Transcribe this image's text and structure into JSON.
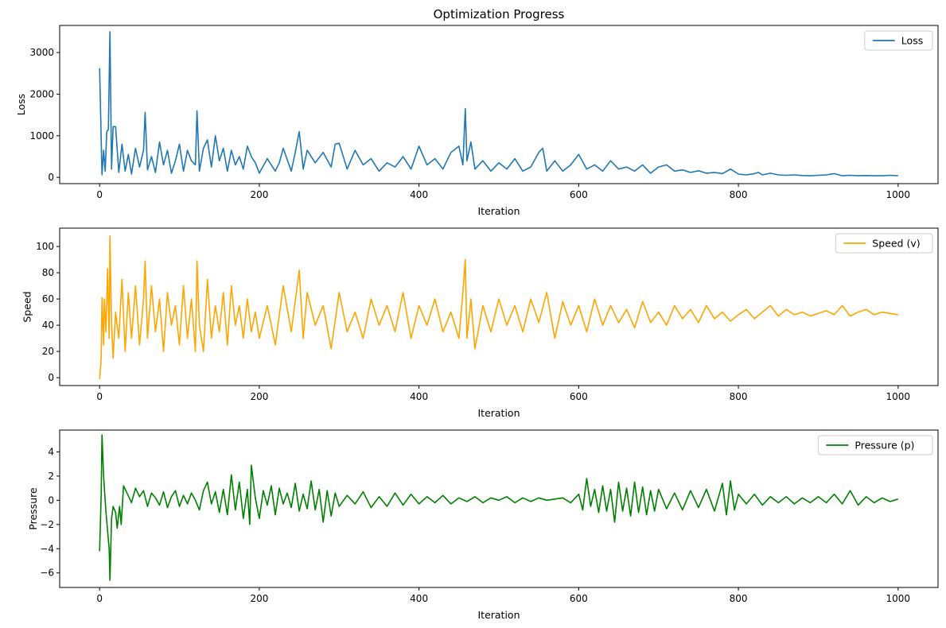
{
  "chart_data": [
    {
      "type": "line",
      "title": "Optimization Progress",
      "xlabel": "Iteration",
      "ylabel": "Loss",
      "xlim": [
        -50,
        1050
      ],
      "ylim": [
        -150,
        3650
      ],
      "xticks": [
        0,
        200,
        400,
        600,
        800,
        1000
      ],
      "yticks": [
        0,
        1000,
        2000,
        3000
      ],
      "grid": false,
      "legend_position": "top-right",
      "series": [
        {
          "name": "Loss",
          "color": "#1f77b4",
          "x": [
            0,
            3,
            5,
            7,
            9,
            11,
            13,
            15,
            17,
            20,
            24,
            28,
            32,
            36,
            40,
            45,
            50,
            55,
            57,
            60,
            65,
            70,
            75,
            80,
            85,
            90,
            95,
            100,
            105,
            110,
            115,
            120,
            122,
            125,
            130,
            135,
            140,
            145,
            150,
            155,
            160,
            165,
            170,
            175,
            180,
            185,
            190,
            195,
            200,
            210,
            220,
            225,
            230,
            240,
            245,
            250,
            255,
            260,
            270,
            280,
            290,
            295,
            300,
            310,
            320,
            330,
            340,
            350,
            360,
            370,
            380,
            390,
            400,
            410,
            420,
            430,
            440,
            450,
            455,
            458,
            460,
            465,
            470,
            480,
            490,
            500,
            510,
            520,
            530,
            540,
            550,
            555,
            560,
            570,
            580,
            590,
            600,
            610,
            620,
            630,
            640,
            650,
            660,
            670,
            680,
            690,
            700,
            710,
            720,
            730,
            740,
            750,
            760,
            770,
            780,
            790,
            800,
            810,
            820,
            825,
            830,
            840,
            850,
            860,
            870,
            880,
            890,
            900,
            910,
            920,
            930,
            940,
            950,
            960,
            970,
            980,
            990,
            1000
          ],
          "values": [
            2620,
            60,
            650,
            150,
            1100,
            1150,
            3500,
            200,
            1220,
            1220,
            120,
            800,
            150,
            550,
            80,
            700,
            250,
            650,
            1560,
            180,
            500,
            120,
            850,
            300,
            650,
            100,
            400,
            800,
            150,
            650,
            400,
            300,
            1600,
            150,
            700,
            900,
            250,
            1000,
            400,
            700,
            150,
            650,
            300,
            500,
            200,
            750,
            500,
            350,
            100,
            450,
            150,
            350,
            700,
            150,
            600,
            1100,
            200,
            650,
            350,
            600,
            250,
            800,
            820,
            200,
            650,
            300,
            450,
            150,
            350,
            250,
            500,
            200,
            750,
            300,
            450,
            200,
            600,
            750,
            300,
            1650,
            400,
            850,
            200,
            400,
            150,
            350,
            200,
            450,
            150,
            250,
            600,
            700,
            150,
            400,
            150,
            300,
            550,
            200,
            300,
            150,
            400,
            200,
            250,
            150,
            300,
            100,
            250,
            300,
            150,
            180,
            120,
            160,
            100,
            120,
            90,
            200,
            80,
            60,
            90,
            120,
            60,
            100,
            60,
            50,
            60,
            45,
            40,
            50,
            60,
            90,
            40,
            50,
            40,
            45,
            40,
            40,
            50,
            40
          ]
        }
      ]
    },
    {
      "type": "line",
      "title": "",
      "xlabel": "Iteration",
      "ylabel": "Speed",
      "xlim": [
        -50,
        1050
      ],
      "ylim": [
        -6,
        114
      ],
      "xticks": [
        0,
        200,
        400,
        600,
        800,
        1000
      ],
      "yticks": [
        0,
        20,
        40,
        60,
        80,
        100
      ],
      "grid": false,
      "legend_position": "top-right",
      "series": [
        {
          "name": "Speed (v)",
          "color": "#ffa500",
          "x": [
            0,
            2,
            3,
            5,
            6,
            8,
            10,
            12,
            13,
            15,
            17,
            20,
            24,
            28,
            32,
            36,
            40,
            45,
            50,
            55,
            57,
            60,
            65,
            70,
            75,
            80,
            85,
            90,
            95,
            100,
            105,
            110,
            115,
            120,
            122,
            125,
            130,
            135,
            140,
            145,
            150,
            155,
            160,
            165,
            170,
            175,
            180,
            185,
            190,
            195,
            200,
            210,
            220,
            230,
            240,
            250,
            255,
            260,
            270,
            280,
            290,
            300,
            310,
            320,
            330,
            340,
            350,
            360,
            370,
            380,
            390,
            400,
            410,
            420,
            430,
            440,
            450,
            455,
            458,
            460,
            465,
            470,
            480,
            490,
            500,
            510,
            520,
            530,
            540,
            550,
            560,
            570,
            580,
            590,
            600,
            610,
            620,
            630,
            640,
            650,
            660,
            670,
            680,
            690,
            700,
            710,
            720,
            730,
            740,
            750,
            760,
            770,
            780,
            790,
            800,
            810,
            820,
            830,
            840,
            850,
            860,
            870,
            880,
            890,
            900,
            910,
            920,
            930,
            940,
            950,
            960,
            970,
            980,
            990,
            1000
          ],
          "values": [
            -1,
            15,
            61,
            25,
            60,
            35,
            83,
            30,
            108,
            40,
            15,
            50,
            30,
            75,
            20,
            65,
            30,
            70,
            25,
            60,
            89,
            30,
            70,
            35,
            60,
            20,
            65,
            40,
            55,
            25,
            70,
            30,
            60,
            20,
            89,
            40,
            20,
            75,
            30,
            55,
            35,
            65,
            25,
            70,
            40,
            55,
            30,
            60,
            35,
            50,
            30,
            55,
            25,
            70,
            35,
            82,
            30,
            65,
            40,
            55,
            22,
            65,
            35,
            50,
            30,
            60,
            40,
            55,
            35,
            65,
            30,
            55,
            40,
            60,
            35,
            50,
            30,
            65,
            90,
            30,
            60,
            22,
            55,
            35,
            60,
            40,
            55,
            35,
            60,
            42,
            65,
            30,
            58,
            40,
            55,
            35,
            60,
            40,
            55,
            42,
            52,
            38,
            58,
            42,
            50,
            40,
            55,
            45,
            52,
            42,
            55,
            45,
            50,
            43,
            48,
            52,
            45,
            50,
            55,
            47,
            52,
            48,
            50,
            47,
            49,
            51,
            48,
            55,
            47,
            50,
            52,
            48,
            50,
            49,
            48
          ]
        }
      ]
    },
    {
      "type": "line",
      "title": "",
      "xlabel": "Iteration",
      "ylabel": "Pressure",
      "xlim": [
        -50,
        1050
      ],
      "ylim": [
        -7.2,
        5.8
      ],
      "xticks": [
        0,
        200,
        400,
        600,
        800,
        1000
      ],
      "yticks": [
        -6,
        -4,
        -2,
        0,
        2,
        4
      ],
      "grid": false,
      "legend_position": "top-right",
      "series": [
        {
          "name": "Pressure (p)",
          "color": "#008000",
          "x": [
            0,
            2,
            3,
            5,
            6,
            8,
            10,
            12,
            13,
            15,
            17,
            20,
            22,
            25,
            27,
            30,
            35,
            40,
            45,
            50,
            55,
            60,
            65,
            70,
            75,
            80,
            85,
            90,
            95,
            100,
            105,
            110,
            115,
            120,
            125,
            130,
            135,
            140,
            145,
            150,
            155,
            160,
            165,
            170,
            175,
            180,
            185,
            188,
            190,
            195,
            200,
            205,
            210,
            215,
            220,
            225,
            230,
            235,
            240,
            245,
            250,
            255,
            260,
            265,
            270,
            275,
            280,
            285,
            290,
            295,
            300,
            310,
            320,
            330,
            340,
            350,
            360,
            370,
            380,
            390,
            400,
            410,
            420,
            430,
            440,
            450,
            460,
            470,
            480,
            490,
            500,
            510,
            520,
            530,
            540,
            550,
            560,
            570,
            580,
            590,
            600,
            605,
            610,
            615,
            620,
            625,
            630,
            635,
            640,
            645,
            650,
            655,
            660,
            665,
            670,
            675,
            680,
            685,
            690,
            695,
            700,
            710,
            720,
            730,
            740,
            750,
            760,
            770,
            780,
            785,
            790,
            795,
            800,
            810,
            820,
            830,
            840,
            850,
            860,
            870,
            880,
            890,
            900,
            910,
            920,
            930,
            940,
            950,
            960,
            970,
            980,
            990,
            1000
          ],
          "values": [
            -4.2,
            0.5,
            5.4,
            2.0,
            1.0,
            -1.0,
            -2.5,
            -4.0,
            -6.6,
            -1.5,
            -0.5,
            -1.0,
            -2.3,
            -0.5,
            -2.0,
            1.2,
            0.5,
            -0.2,
            1.0,
            0.3,
            0.8,
            -0.5,
            0.6,
            0.2,
            -0.4,
            0.7,
            -0.6,
            0.3,
            0.8,
            -0.5,
            0.4,
            -0.3,
            0.6,
            0.0,
            -0.8,
            0.8,
            1.5,
            -0.3,
            0.7,
            -1.0,
            0.9,
            -1.2,
            2.1,
            -0.8,
            1.5,
            -1.5,
            0.9,
            -2.0,
            2.9,
            0.2,
            -1.5,
            0.8,
            -0.4,
            1.2,
            -1.2,
            1.0,
            -0.3,
            0.6,
            -0.6,
            1.4,
            -0.9,
            0.5,
            -0.7,
            1.6,
            -0.8,
            0.9,
            -1.8,
            0.8,
            -1.3,
            0.6,
            -0.5,
            0.4,
            -0.3,
            0.7,
            -0.6,
            0.3,
            -0.5,
            0.6,
            -0.4,
            0.5,
            -0.3,
            0.3,
            -0.2,
            0.4,
            -0.3,
            0.2,
            -0.1,
            0.3,
            -0.2,
            0.2,
            0.0,
            0.3,
            -0.2,
            0.2,
            -0.1,
            0.2,
            0.0,
            0.1,
            0.2,
            -0.2,
            0.5,
            -0.8,
            1.8,
            -0.5,
            0.9,
            -1.0,
            1.2,
            -0.9,
            0.9,
            -1.8,
            1.5,
            -0.9,
            1.0,
            -1.3,
            1.5,
            -1.0,
            1.1,
            -1.2,
            0.8,
            -0.9,
            0.9,
            -0.7,
            0.6,
            -0.8,
            0.8,
            -0.6,
            0.9,
            -0.9,
            1.4,
            -1.2,
            1.6,
            -0.8,
            0.5,
            -0.3,
            0.5,
            -0.4,
            0.3,
            -0.2,
            0.3,
            -0.3,
            0.2,
            -0.2,
            0.3,
            -0.2,
            0.5,
            -0.3,
            0.8,
            -0.4,
            0.3,
            -0.2,
            0.2,
            -0.1,
            0.1
          ]
        }
      ]
    }
  ]
}
